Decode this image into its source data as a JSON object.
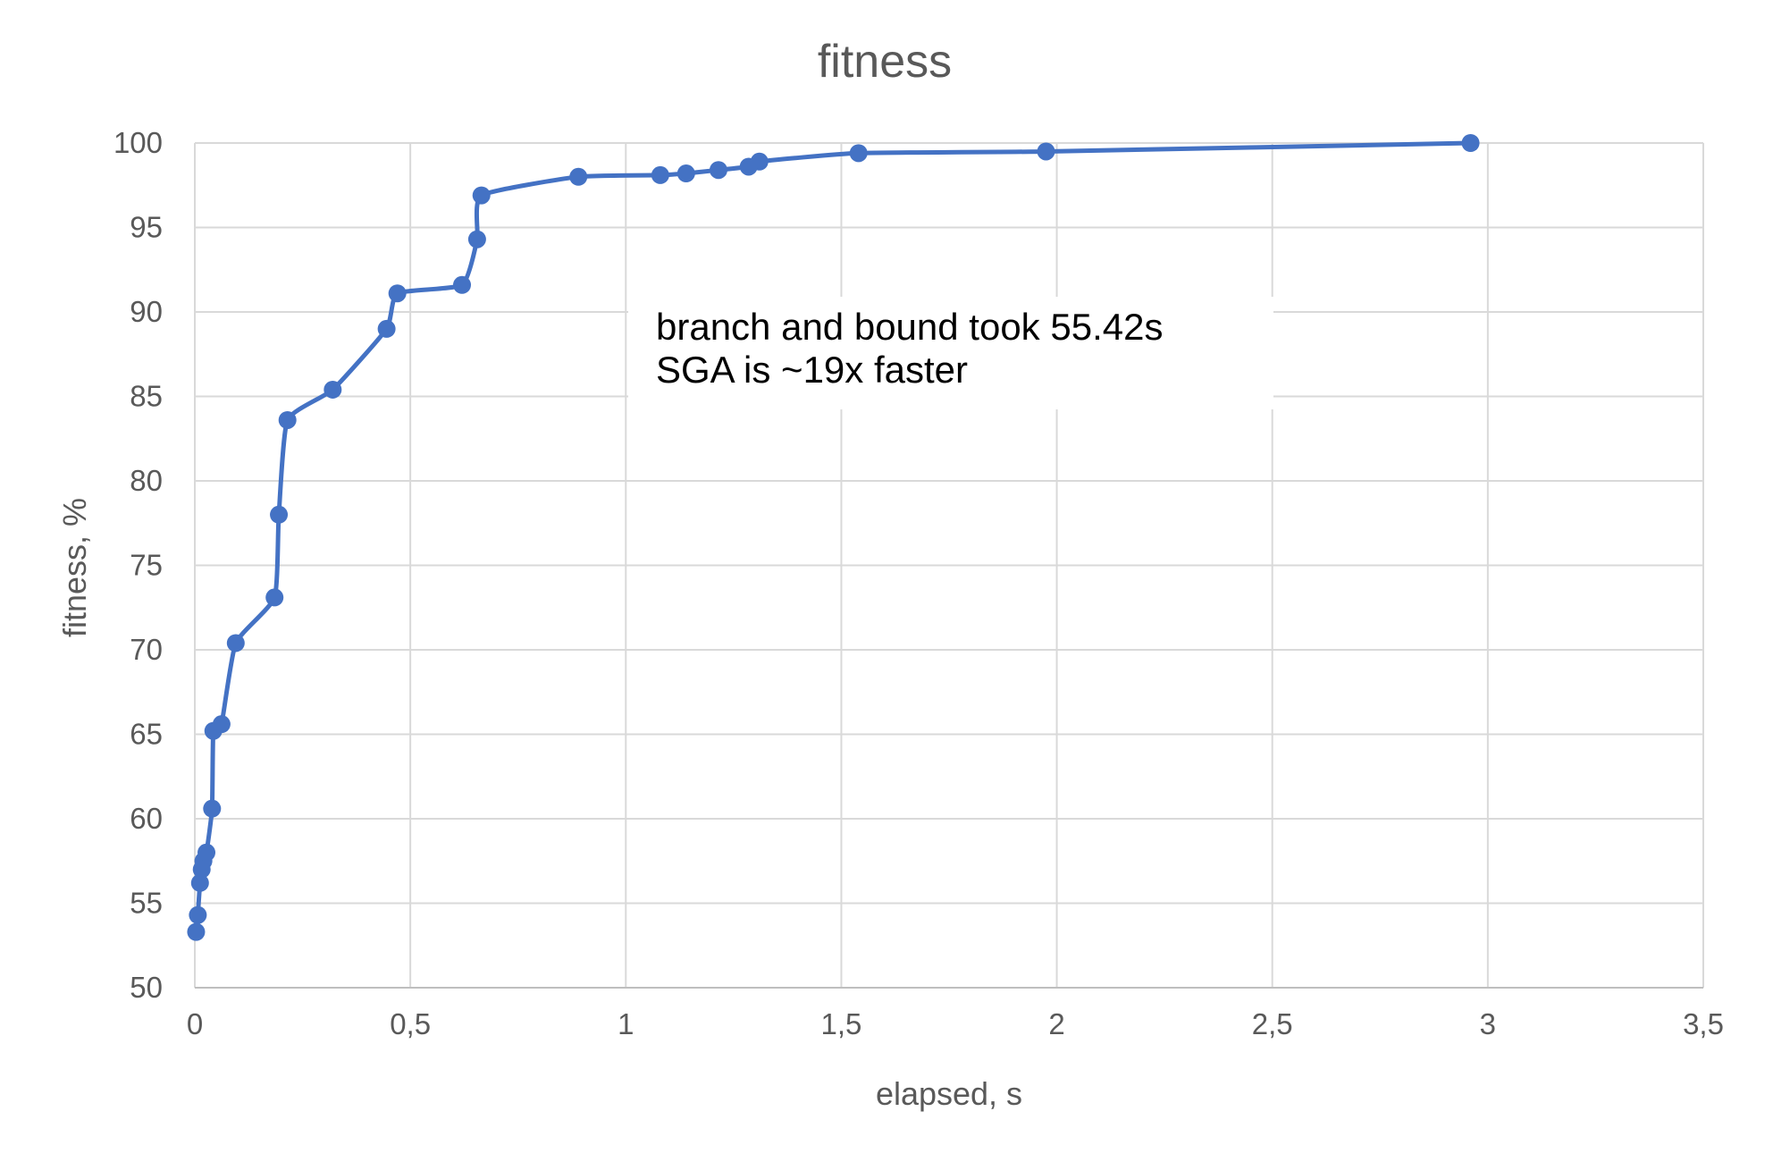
{
  "chart_data": {
    "type": "scatter",
    "title": "fitness",
    "xlabel": "elapsed, s",
    "ylabel": "fitness, %",
    "xlim": [
      0,
      3.5
    ],
    "ylim": [
      50,
      100
    ],
    "x_ticks": [
      "0",
      "0,5",
      "1",
      "1,5",
      "2",
      "2,5",
      "3",
      "3,5"
    ],
    "y_ticks": [
      "50",
      "55",
      "60",
      "65",
      "70",
      "75",
      "80",
      "85",
      "90",
      "95",
      "100"
    ],
    "grid": true,
    "smooth_line": true,
    "series_color": "#4472C4",
    "grid_color": "#D9D9D9",
    "annotation": [
      "branch and bound took 55.42s",
      "SGA is ~19x faster"
    ],
    "points": [
      {
        "x": 0.003,
        "y": 53.3
      },
      {
        "x": 0.007,
        "y": 54.3
      },
      {
        "x": 0.012,
        "y": 56.2
      },
      {
        "x": 0.016,
        "y": 57.0
      },
      {
        "x": 0.02,
        "y": 57.5
      },
      {
        "x": 0.027,
        "y": 58.0
      },
      {
        "x": 0.04,
        "y": 60.6
      },
      {
        "x": 0.043,
        "y": 65.2
      },
      {
        "x": 0.062,
        "y": 65.6
      },
      {
        "x": 0.095,
        "y": 70.4
      },
      {
        "x": 0.185,
        "y": 73.1
      },
      {
        "x": 0.195,
        "y": 78.0
      },
      {
        "x": 0.215,
        "y": 83.6
      },
      {
        "x": 0.32,
        "y": 85.4
      },
      {
        "x": 0.445,
        "y": 89.0
      },
      {
        "x": 0.47,
        "y": 91.1
      },
      {
        "x": 0.62,
        "y": 91.6
      },
      {
        "x": 0.655,
        "y": 94.3
      },
      {
        "x": 0.665,
        "y": 96.9
      },
      {
        "x": 0.89,
        "y": 98.0
      },
      {
        "x": 1.08,
        "y": 98.1
      },
      {
        "x": 1.14,
        "y": 98.2
      },
      {
        "x": 1.215,
        "y": 98.4
      },
      {
        "x": 1.285,
        "y": 98.6
      },
      {
        "x": 1.31,
        "y": 98.9
      },
      {
        "x": 1.54,
        "y": 99.4
      },
      {
        "x": 1.975,
        "y": 99.5
      },
      {
        "x": 2.96,
        "y": 100.0
      }
    ]
  }
}
